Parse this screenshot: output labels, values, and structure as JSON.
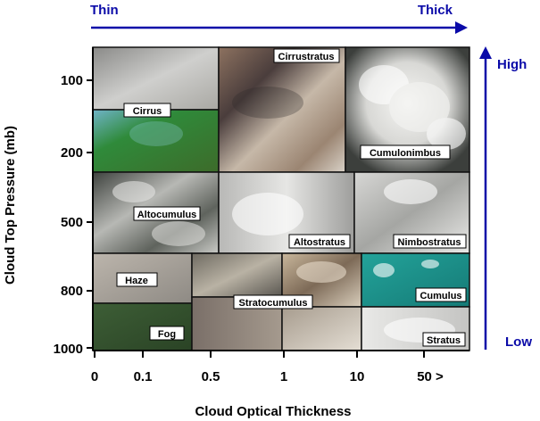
{
  "labels": {
    "thin": "Thin",
    "thick": "Thick",
    "high": "High",
    "low": "Low",
    "y_axis_title": "Cloud Top Pressure (mb)",
    "x_axis_title": "Cloud Optical Thickness"
  },
  "colors": {
    "arrow": "#0a0aa8"
  },
  "y_ticks": [
    "100",
    "200",
    "500",
    "800",
    "1000"
  ],
  "x_ticks": [
    "0",
    "0.1",
    "0.5",
    "1",
    "10",
    "50 >"
  ],
  "cloud_types": [
    {
      "id": "cirrus",
      "label": "Cirrus"
    },
    {
      "id": "cirrostratus",
      "label": "Cirrustratus"
    },
    {
      "id": "cumulonimbus",
      "label": "Cumulonimbus"
    },
    {
      "id": "altocumulus",
      "label": "Altocumulus"
    },
    {
      "id": "altostratus",
      "label": "Altostratus"
    },
    {
      "id": "nimbostratus",
      "label": "Nimbostratus"
    },
    {
      "id": "haze",
      "label": "Haze"
    },
    {
      "id": "stratocumulus",
      "label": "Stratocumulus"
    },
    {
      "id": "cumulus",
      "label": "Cumulus"
    },
    {
      "id": "fog",
      "label": "Fog"
    },
    {
      "id": "stratus",
      "label": "Stratus"
    }
  ]
}
